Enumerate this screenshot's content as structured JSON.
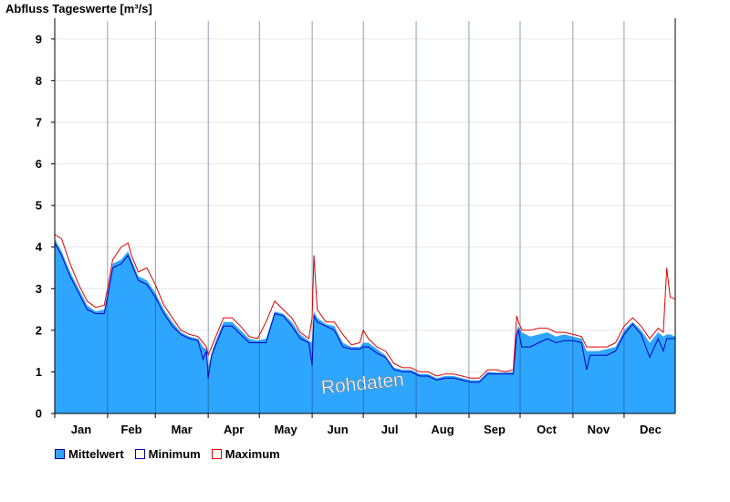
{
  "chart_data": {
    "type": "area",
    "title": "Abfluss Tageswerte [m³/s]",
    "ylabel": "",
    "xlabel": "",
    "ylim": [
      0,
      9.5
    ],
    "yticks": [
      "0",
      "1",
      "2",
      "3",
      "4",
      "5",
      "6",
      "7",
      "8",
      "9"
    ],
    "months": [
      "Jan",
      "Feb",
      "Mar",
      "Apr",
      "May",
      "Jun",
      "Jul",
      "Aug",
      "Sep",
      "Oct",
      "Nov",
      "Dec"
    ],
    "watermark": "Rohdaten",
    "grid": true,
    "legend_position": "bottom-left",
    "colors": {
      "mean_fill": "#2ea6ff",
      "min_line": "#0000c0",
      "max_line": "#e00000"
    },
    "x": [
      1,
      5,
      10,
      15,
      20,
      25,
      30,
      32,
      35,
      40,
      44,
      46,
      50,
      55,
      60,
      65,
      70,
      75,
      80,
      85,
      88,
      90,
      91,
      93,
      95,
      100,
      105,
      110,
      115,
      120,
      125,
      130,
      135,
      140,
      145,
      150,
      152,
      153,
      155,
      160,
      165,
      170,
      175,
      180,
      182,
      185,
      190,
      195,
      200,
      205,
      210,
      215,
      220,
      225,
      230,
      235,
      240,
      245,
      250,
      255,
      260,
      265,
      270,
      272,
      273,
      275,
      280,
      285,
      290,
      295,
      300,
      305,
      310,
      313,
      315,
      320,
      325,
      330,
      335,
      340,
      345,
      350,
      355,
      358,
      360,
      362,
      365
    ],
    "series": [
      {
        "name": "Mittelwert",
        "values": [
          4.2,
          3.9,
          3.4,
          3.0,
          2.6,
          2.45,
          2.5,
          2.9,
          3.6,
          3.7,
          3.9,
          3.7,
          3.3,
          3.2,
          2.9,
          2.5,
          2.2,
          1.95,
          1.85,
          1.8,
          1.6,
          1.55,
          1.1,
          1.45,
          1.7,
          2.2,
          2.2,
          2.0,
          1.8,
          1.75,
          1.8,
          2.45,
          2.4,
          2.2,
          1.9,
          1.75,
          1.7,
          2.45,
          2.3,
          2.15,
          2.1,
          1.7,
          1.6,
          1.6,
          1.7,
          1.7,
          1.55,
          1.4,
          1.1,
          1.05,
          1.05,
          0.95,
          0.95,
          0.85,
          0.9,
          0.9,
          0.85,
          0.8,
          0.8,
          1.0,
          0.98,
          0.98,
          1.0,
          2.0,
          2.1,
          1.95,
          1.85,
          1.9,
          1.95,
          1.85,
          1.9,
          1.85,
          1.8,
          1.5,
          1.5,
          1.5,
          1.55,
          1.6,
          2.0,
          2.2,
          2.0,
          1.7,
          1.95,
          1.85,
          1.9,
          1.9,
          1.85
        ]
      },
      {
        "name": "Minimum",
        "values": [
          4.1,
          3.8,
          3.3,
          2.9,
          2.5,
          2.4,
          2.4,
          2.8,
          3.5,
          3.6,
          3.8,
          3.6,
          3.2,
          3.1,
          2.8,
          2.4,
          2.1,
          1.9,
          1.8,
          1.75,
          1.3,
          1.5,
          0.85,
          1.4,
          1.6,
          2.1,
          2.1,
          1.9,
          1.7,
          1.7,
          1.7,
          2.4,
          2.35,
          2.1,
          1.8,
          1.7,
          1.15,
          2.35,
          2.2,
          2.1,
          2.0,
          1.6,
          1.55,
          1.55,
          1.6,
          1.6,
          1.45,
          1.35,
          1.05,
          1.0,
          1.0,
          0.9,
          0.9,
          0.8,
          0.85,
          0.85,
          0.8,
          0.75,
          0.75,
          0.95,
          0.95,
          0.95,
          0.95,
          1.9,
          2.0,
          1.6,
          1.6,
          1.7,
          1.8,
          1.7,
          1.75,
          1.75,
          1.7,
          1.05,
          1.4,
          1.4,
          1.4,
          1.5,
          1.9,
          2.15,
          1.9,
          1.35,
          1.8,
          1.5,
          1.8,
          1.8,
          1.8
        ]
      },
      {
        "name": "Maximum",
        "values": [
          4.3,
          4.2,
          3.6,
          3.1,
          2.7,
          2.55,
          2.6,
          3.0,
          3.7,
          4.0,
          4.1,
          3.8,
          3.4,
          3.5,
          3.1,
          2.6,
          2.3,
          2.0,
          1.9,
          1.85,
          1.7,
          1.6,
          1.4,
          1.6,
          1.8,
          2.3,
          2.3,
          2.1,
          1.85,
          1.8,
          2.2,
          2.7,
          2.5,
          2.3,
          1.95,
          1.8,
          2.3,
          3.8,
          2.5,
          2.2,
          2.2,
          1.9,
          1.65,
          1.7,
          2.0,
          1.8,
          1.6,
          1.5,
          1.2,
          1.1,
          1.1,
          1.0,
          1.0,
          0.9,
          0.95,
          0.95,
          0.9,
          0.85,
          0.85,
          1.05,
          1.05,
          1.0,
          1.05,
          2.35,
          2.2,
          2.0,
          2.0,
          2.05,
          2.05,
          1.95,
          1.95,
          1.9,
          1.85,
          1.6,
          1.6,
          1.6,
          1.6,
          1.7,
          2.1,
          2.3,
          2.1,
          1.8,
          2.05,
          1.95,
          3.5,
          2.8,
          2.75
        ]
      }
    ]
  }
}
